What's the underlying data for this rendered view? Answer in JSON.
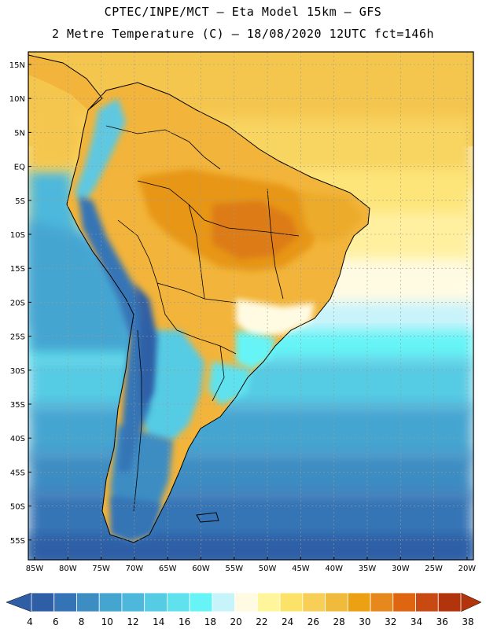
{
  "header": {
    "line1": "CPTEC/INPE/MCT –  Eta Model 15km – GFS",
    "line2": "2 Metre Temperature (C) – 18/08/2020 12UTC fct=146h"
  },
  "map": {
    "lat_labels": [
      "15N",
      "10N",
      "5N",
      "EQ",
      "5S",
      "10S",
      "15S",
      "20S",
      "25S",
      "30S",
      "35S",
      "40S",
      "45S",
      "50S",
      "55S"
    ],
    "lon_labels": [
      "85W",
      "80W",
      "75W",
      "70W",
      "65W",
      "60W",
      "55W",
      "50W",
      "45W",
      "40W",
      "35W",
      "30W",
      "25W",
      "20W"
    ]
  },
  "colorbar": {
    "labels": [
      "4",
      "6",
      "8",
      "10",
      "12",
      "14",
      "16",
      "18",
      "20",
      "22",
      "24",
      "26",
      "28",
      "30",
      "32",
      "34",
      "36",
      "38"
    ],
    "colors": [
      "#2e5fa6",
      "#3474b6",
      "#3d8dc3",
      "#44a5d1",
      "#4db8dc",
      "#56cbe4",
      "#5fe2ee",
      "#66f4f6",
      "#c7f3fb",
      "#fffbe3",
      "#fff59a",
      "#fde26a",
      "#f8cf56",
      "#f0bb3c",
      "#eca112",
      "#e7881c",
      "#df6511",
      "#c84a12",
      "#b2340c"
    ],
    "left_arrow_color": "#2e5fa6",
    "right_arrow_color": "#b2340c"
  },
  "fields": {
    "ocean_north": "#f5c64e",
    "ocean_south_deep": "#2e5fa6",
    "land_hot": "#e79614",
    "land_warm": "#f2b43a",
    "andes_cold": "#5fc8e0"
  }
}
